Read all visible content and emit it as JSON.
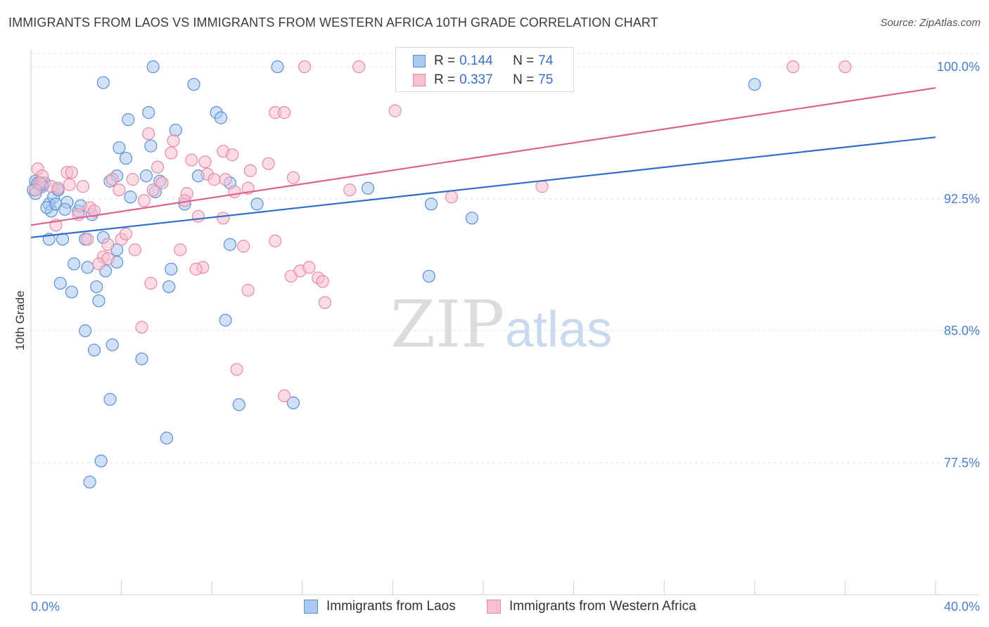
{
  "title": "IMMIGRANTS FROM LAOS VS IMMIGRANTS FROM WESTERN AFRICA 10TH GRADE CORRELATION CHART",
  "source": "Source: ZipAtlas.com",
  "watermark": {
    "zip": "ZIP",
    "atlas": "atlas"
  },
  "legend": {
    "r_label": "R =",
    "n_label": "N =",
    "rows": [
      {
        "r": "0.144",
        "n": "74"
      },
      {
        "r": "0.337",
        "n": "75"
      }
    ]
  },
  "colors": {
    "blue_fill": "#aac8f0",
    "blue_stroke": "#5b8fd6",
    "blue_line": "#2f6fcb",
    "pink_fill": "#f7bfd0",
    "pink_stroke": "#e68aa8",
    "pink_line": "#e0608e",
    "grid": "#e2e2e2",
    "tick_text": "#4a7ec9"
  },
  "chart_data": {
    "type": "scatter",
    "title": "IMMIGRANTS FROM LAOS VS IMMIGRANTS FROM WESTERN AFRICA 10TH GRADE CORRELATION CHART",
    "xlabel": "",
    "ylabel": "10th Grade",
    "xlim": [
      0,
      40
    ],
    "ylim": [
      70.0,
      101.0
    ],
    "x_tick_labels": [
      "0.0%",
      "40.0%"
    ],
    "y_ticks": [
      77.5,
      85.0,
      92.5,
      100.0
    ],
    "y_tick_labels": [
      "77.5%",
      "85.0%",
      "92.5%",
      "100.0%"
    ],
    "grid": true,
    "series": [
      {
        "name": "Immigrants from Laos",
        "R": 0.144,
        "N": 74,
        "trend": {
          "x": [
            0,
            40
          ],
          "y": [
            90.3,
            96.0
          ]
        },
        "points": [
          [
            0.1,
            93.0
          ],
          [
            0.2,
            93.5
          ],
          [
            0.3,
            93.4
          ],
          [
            0.4,
            93.3
          ],
          [
            0.5,
            93.2
          ],
          [
            0.6,
            93.4
          ],
          [
            0.8,
            92.2
          ],
          [
            0.9,
            91.8
          ],
          [
            0.7,
            92.0
          ],
          [
            1.0,
            92.6
          ],
          [
            1.1,
            92.2
          ],
          [
            1.2,
            93.0
          ],
          [
            0.8,
            90.2
          ],
          [
            1.4,
            90.2
          ],
          [
            1.6,
            92.3
          ],
          [
            1.5,
            91.9
          ],
          [
            2.1,
            91.8
          ],
          [
            2.2,
            92.1
          ],
          [
            2.7,
            91.6
          ],
          [
            2.4,
            90.2
          ],
          [
            3.2,
            90.3
          ],
          [
            3.8,
            89.6
          ],
          [
            3.8,
            93.8
          ],
          [
            3.5,
            93.5
          ],
          [
            3.3,
            88.4
          ],
          [
            3.8,
            88.9
          ],
          [
            2.5,
            88.6
          ],
          [
            1.9,
            88.8
          ],
          [
            1.3,
            87.7
          ],
          [
            1.8,
            87.2
          ],
          [
            2.9,
            87.5
          ],
          [
            3.0,
            86.7
          ],
          [
            2.4,
            85.0
          ],
          [
            2.8,
            83.9
          ],
          [
            3.6,
            84.2
          ],
          [
            4.9,
            83.4
          ],
          [
            3.5,
            81.1
          ],
          [
            4.4,
            92.6
          ],
          [
            5.1,
            93.8
          ],
          [
            5.5,
            92.9
          ],
          [
            5.7,
            93.5
          ],
          [
            6.8,
            92.2
          ],
          [
            6.2,
            88.5
          ],
          [
            6.1,
            87.5
          ],
          [
            8.8,
            89.9
          ],
          [
            8.6,
            85.6
          ],
          [
            9.2,
            80.8
          ],
          [
            6.0,
            78.9
          ],
          [
            3.1,
            77.6
          ],
          [
            2.6,
            76.4
          ],
          [
            3.2,
            99.1
          ],
          [
            5.4,
            100.0
          ],
          [
            7.2,
            99.0
          ],
          [
            8.2,
            97.4
          ],
          [
            8.4,
            97.1
          ],
          [
            5.2,
            97.4
          ],
          [
            4.3,
            97.0
          ],
          [
            6.4,
            96.4
          ],
          [
            3.9,
            95.4
          ],
          [
            4.2,
            94.8
          ],
          [
            5.3,
            95.5
          ],
          [
            7.4,
            93.8
          ],
          [
            8.8,
            93.4
          ],
          [
            10.0,
            92.2
          ],
          [
            10.9,
            100.0
          ],
          [
            11.6,
            80.9
          ],
          [
            14.9,
            93.1
          ],
          [
            17.7,
            92.2
          ],
          [
            19.5,
            91.4
          ],
          [
            17.6,
            88.1
          ],
          [
            32.0,
            99.0
          ],
          [
            0.2,
            92.8
          ],
          [
            0.5,
            93.3
          ],
          [
            1.2,
            93.0
          ]
        ]
      },
      {
        "name": "Immigrants from Western Africa",
        "R": 0.337,
        "N": 75,
        "trend": {
          "x": [
            0,
            40
          ],
          "y": [
            91.0,
            98.8
          ]
        },
        "points": [
          [
            0.3,
            94.2
          ],
          [
            0.5,
            93.8
          ],
          [
            0.4,
            93.4
          ],
          [
            0.9,
            93.2
          ],
          [
            1.2,
            93.1
          ],
          [
            1.6,
            94.0
          ],
          [
            1.8,
            94.0
          ],
          [
            2.3,
            93.2
          ],
          [
            1.1,
            91.0
          ],
          [
            2.1,
            91.6
          ],
          [
            2.6,
            92.0
          ],
          [
            2.5,
            90.2
          ],
          [
            3.2,
            89.2
          ],
          [
            3.4,
            89.9
          ],
          [
            4.0,
            90.2
          ],
          [
            4.2,
            90.5
          ],
          [
            3.6,
            93.6
          ],
          [
            3.9,
            93.0
          ],
          [
            4.5,
            93.6
          ],
          [
            5.0,
            92.4
          ],
          [
            5.4,
            93.0
          ],
          [
            5.6,
            94.3
          ],
          [
            5.2,
            96.2
          ],
          [
            6.3,
            95.8
          ],
          [
            6.2,
            95.1
          ],
          [
            5.8,
            93.4
          ],
          [
            6.9,
            92.8
          ],
          [
            6.8,
            92.4
          ],
          [
            7.1,
            94.7
          ],
          [
            7.7,
            94.6
          ],
          [
            7.8,
            93.9
          ],
          [
            8.1,
            93.6
          ],
          [
            8.5,
            95.2
          ],
          [
            8.9,
            95.0
          ],
          [
            8.6,
            93.6
          ],
          [
            9.0,
            92.9
          ],
          [
            9.7,
            94.1
          ],
          [
            9.6,
            93.1
          ],
          [
            10.5,
            94.5
          ],
          [
            10.8,
            97.4
          ],
          [
            11.2,
            97.4
          ],
          [
            11.6,
            93.7
          ],
          [
            12.1,
            100.0
          ],
          [
            14.5,
            100.0
          ],
          [
            16.5,
            100.0
          ],
          [
            16.1,
            97.5
          ],
          [
            14.1,
            93.0
          ],
          [
            18.6,
            92.6
          ],
          [
            22.6,
            93.2
          ],
          [
            33.7,
            100.0
          ],
          [
            36.0,
            100.0
          ],
          [
            7.4,
            91.5
          ],
          [
            8.5,
            91.4
          ],
          [
            6.6,
            89.6
          ],
          [
            4.6,
            89.6
          ],
          [
            3.0,
            88.8
          ],
          [
            3.4,
            89.1
          ],
          [
            5.3,
            87.7
          ],
          [
            7.6,
            88.6
          ],
          [
            7.3,
            88.5
          ],
          [
            9.4,
            89.8
          ],
          [
            9.6,
            87.3
          ],
          [
            10.8,
            90.1
          ],
          [
            11.5,
            88.1
          ],
          [
            11.9,
            88.4
          ],
          [
            12.3,
            88.6
          ],
          [
            12.7,
            88.0
          ],
          [
            12.9,
            87.8
          ],
          [
            13.0,
            86.6
          ],
          [
            4.9,
            85.2
          ],
          [
            9.1,
            82.8
          ],
          [
            11.2,
            81.3
          ],
          [
            0.2,
            93.0
          ],
          [
            2.8,
            91.8
          ],
          [
            1.7,
            93.3
          ]
        ]
      }
    ]
  }
}
